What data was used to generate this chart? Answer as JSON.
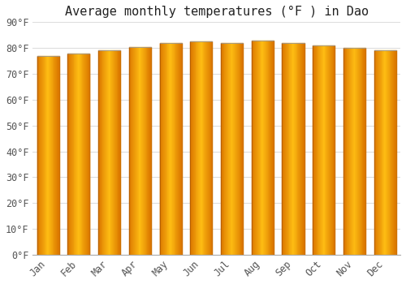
{
  "months": [
    "Jan",
    "Feb",
    "Mar",
    "Apr",
    "May",
    "Jun",
    "Jul",
    "Aug",
    "Sep",
    "Oct",
    "Nov",
    "Dec"
  ],
  "values": [
    77.0,
    78.0,
    79.0,
    80.5,
    82.0,
    82.5,
    82.0,
    83.0,
    82.0,
    81.0,
    80.0,
    79.0
  ],
  "title": "Average monthly temperatures (°F ) in Dao",
  "ylim": [
    0,
    90
  ],
  "ytick_values": [
    0,
    10,
    20,
    30,
    40,
    50,
    60,
    70,
    80,
    90
  ],
  "ytick_labels": [
    "0°F",
    "10°F",
    "20°F",
    "30°F",
    "40°F",
    "50°F",
    "60°F",
    "70°F",
    "80°F",
    "90°F"
  ],
  "background_color": "#FFFFFF",
  "plot_bg_color": "#FFFFFF",
  "grid_color": "#DDDDDD",
  "bar_left_color": "#E88000",
  "bar_center_color": "#FFB800",
  "bar_right_color": "#FFA000",
  "title_fontsize": 11,
  "tick_fontsize": 8.5,
  "bar_width": 0.72
}
